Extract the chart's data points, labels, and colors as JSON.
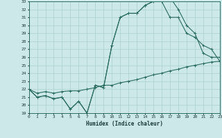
{
  "xlabel": "Humidex (Indice chaleur)",
  "bg_color": "#cce8e8",
  "line_color": "#2a6b60",
  "grid_color": "#aacfcf",
  "x_min": 0,
  "x_max": 23,
  "y_min": 19,
  "y_max": 33,
  "line1_x": [
    0,
    1,
    2,
    3,
    4,
    5,
    6,
    7,
    8,
    9,
    10,
    11,
    12,
    13,
    14,
    15,
    16,
    17,
    18,
    19,
    20,
    21,
    22,
    23
  ],
  "line1_y": [
    22,
    21,
    21.2,
    20.8,
    21,
    19.5,
    20.5,
    19,
    22.5,
    22.2,
    27.5,
    31,
    31.5,
    31.5,
    32.5,
    33,
    33,
    33.5,
    32,
    30,
    29,
    26.5,
    26,
    26
  ],
  "line2_x": [
    0,
    1,
    2,
    3,
    4,
    5,
    6,
    7,
    8,
    9,
    10,
    11,
    12,
    13,
    14,
    15,
    16,
    17,
    18,
    19,
    20,
    21,
    22,
    23
  ],
  "line2_y": [
    22,
    21,
    21.2,
    20.8,
    21,
    19.5,
    20.5,
    19,
    22.5,
    22.2,
    27.5,
    31,
    31.5,
    31.5,
    32.5,
    33,
    33,
    31,
    31,
    29,
    28.5,
    27.5,
    27,
    25.5
  ],
  "line3_x": [
    0,
    1,
    2,
    3,
    4,
    5,
    6,
    7,
    8,
    9,
    10,
    11,
    12,
    13,
    14,
    15,
    16,
    17,
    18,
    19,
    20,
    21,
    22,
    23
  ],
  "line3_y": [
    22,
    21.5,
    21.7,
    21.5,
    21.7,
    21.8,
    21.8,
    22.0,
    22.2,
    22.5,
    22.5,
    22.8,
    23.0,
    23.2,
    23.5,
    23.8,
    24.0,
    24.3,
    24.5,
    24.8,
    25.0,
    25.2,
    25.4,
    25.5
  ]
}
